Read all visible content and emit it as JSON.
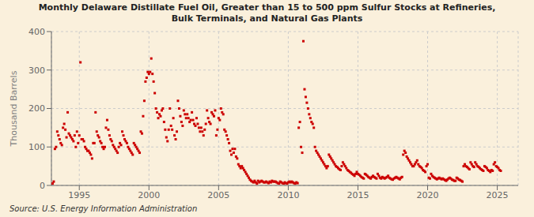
{
  "chart_data": {
    "type": "scatter",
    "title": "Monthly Delaware Distillate Fuel Oil, Greater than 15 to 500 ppm Sulfur Stocks at Refineries,\nBulk Terminals, and Natural Gas Plants",
    "ylabel": "Thousand Barrels",
    "source": "Source: U.S. Energy Information Administration",
    "color": "#CC0000",
    "marker": "s",
    "grid": true,
    "xlim": [
      1993.0,
      2026.5
    ],
    "ylim": [
      0,
      400
    ],
    "xticks": [
      1995,
      2000,
      2005,
      2010,
      2015,
      2020,
      2025
    ],
    "yticks": [
      0,
      100,
      200,
      300,
      400
    ],
    "x": [
      1993.083,
      1993.167,
      1993.25,
      1993.333,
      1993.417,
      1993.5,
      1993.583,
      1993.667,
      1993.75,
      1993.833,
      1993.917,
      1994.0,
      1994.083,
      1994.167,
      1994.25,
      1994.333,
      1994.417,
      1994.5,
      1994.583,
      1994.667,
      1994.75,
      1994.833,
      1994.917,
      1995.0,
      1995.083,
      1995.167,
      1995.25,
      1995.333,
      1995.417,
      1995.5,
      1995.583,
      1995.667,
      1995.75,
      1995.833,
      1995.917,
      1996.0,
      1996.083,
      1996.167,
      1996.25,
      1996.333,
      1996.417,
      1996.5,
      1996.583,
      1996.667,
      1996.75,
      1996.833,
      1996.917,
      1997.0,
      1997.083,
      1997.167,
      1997.25,
      1997.333,
      1997.417,
      1997.5,
      1997.583,
      1997.667,
      1997.75,
      1997.833,
      1997.917,
      1998.0,
      1998.083,
      1998.167,
      1998.25,
      1998.333,
      1998.417,
      1998.5,
      1998.583,
      1998.667,
      1998.75,
      1998.833,
      1998.917,
      1999.0,
      1999.083,
      1999.167,
      1999.25,
      1999.333,
      1999.417,
      1999.5,
      1999.583,
      1999.667,
      1999.75,
      1999.833,
      1999.917,
      2000.0,
      2000.083,
      2000.167,
      2000.25,
      2000.333,
      2000.417,
      2000.5,
      2000.583,
      2000.667,
      2000.75,
      2000.833,
      2000.917,
      2001.0,
      2001.083,
      2001.167,
      2001.25,
      2001.333,
      2001.417,
      2001.5,
      2001.583,
      2001.667,
      2001.75,
      2001.833,
      2001.917,
      2002.0,
      2002.083,
      2002.167,
      2002.25,
      2002.333,
      2002.417,
      2002.5,
      2002.583,
      2002.667,
      2002.75,
      2002.833,
      2002.917,
      2003.0,
      2003.083,
      2003.167,
      2003.25,
      2003.333,
      2003.417,
      2003.5,
      2003.583,
      2003.667,
      2003.75,
      2003.833,
      2003.917,
      2004.0,
      2004.083,
      2004.167,
      2004.25,
      2004.333,
      2004.417,
      2004.5,
      2004.583,
      2004.667,
      2004.75,
      2004.833,
      2004.917,
      2005.0,
      2005.083,
      2005.167,
      2005.25,
      2005.333,
      2005.417,
      2005.5,
      2005.583,
      2005.667,
      2005.75,
      2005.833,
      2005.917,
      2006.0,
      2006.083,
      2006.167,
      2006.25,
      2006.333,
      2006.417,
      2006.5,
      2006.583,
      2006.667,
      2006.75,
      2006.833,
      2006.917,
      2007.0,
      2007.083,
      2007.167,
      2007.25,
      2007.333,
      2007.417,
      2007.5,
      2007.583,
      2007.667,
      2007.75,
      2007.833,
      2007.917,
      2008.0,
      2008.083,
      2008.167,
      2008.25,
      2008.333,
      2008.417,
      2008.5,
      2008.583,
      2008.667,
      2008.75,
      2008.833,
      2008.917,
      2009.0,
      2009.083,
      2009.167,
      2009.25,
      2009.333,
      2009.417,
      2009.5,
      2009.583,
      2009.667,
      2009.75,
      2009.833,
      2009.917,
      2010.0,
      2010.083,
      2010.167,
      2010.25,
      2010.333,
      2010.417,
      2010.5,
      2010.583,
      2010.667,
      2010.75,
      2010.833,
      2010.917,
      2011.0,
      2011.083,
      2011.167,
      2011.25,
      2011.333,
      2011.417,
      2011.5,
      2011.583,
      2011.667,
      2011.75,
      2011.833,
      2011.917,
      2012.0,
      2012.083,
      2012.167,
      2012.25,
      2012.333,
      2012.417,
      2012.5,
      2012.583,
      2012.667,
      2012.75,
      2012.833,
      2012.917,
      2013.0,
      2013.083,
      2013.167,
      2013.25,
      2013.333,
      2013.417,
      2013.5,
      2013.583,
      2013.667,
      2013.75,
      2013.833,
      2013.917,
      2014.0,
      2014.083,
      2014.167,
      2014.25,
      2014.333,
      2014.417,
      2014.5,
      2014.583,
      2014.667,
      2014.75,
      2014.833,
      2014.917,
      2015.0,
      2015.083,
      2015.167,
      2015.25,
      2015.333,
      2015.417,
      2015.5,
      2015.583,
      2015.667,
      2015.75,
      2015.833,
      2015.917,
      2016.0,
      2016.083,
      2016.167,
      2016.25,
      2016.333,
      2016.417,
      2016.5,
      2016.583,
      2016.667,
      2016.75,
      2016.833,
      2016.917,
      2017.0,
      2017.083,
      2017.167,
      2017.25,
      2017.333,
      2017.417,
      2017.5,
      2017.583,
      2017.667,
      2017.75,
      2017.833,
      2017.917,
      2018.0,
      2018.083,
      2018.167,
      2018.25,
      2018.333,
      2018.417,
      2018.5,
      2018.583,
      2018.667,
      2018.75,
      2018.833,
      2018.917,
      2019.0,
      2019.083,
      2019.167,
      2019.25,
      2019.333,
      2019.417,
      2019.5,
      2019.583,
      2019.667,
      2019.75,
      2019.833,
      2019.917,
      2020.0,
      2020.083,
      2020.167,
      2020.25,
      2020.333,
      2020.417,
      2020.5,
      2020.583,
      2020.667,
      2020.75,
      2020.833,
      2020.917,
      2021.0,
      2021.083,
      2021.167,
      2021.25,
      2021.333,
      2021.417,
      2021.5,
      2021.583,
      2021.667,
      2021.75,
      2021.833,
      2021.917,
      2022.0,
      2022.083,
      2022.167,
      2022.25,
      2022.333,
      2022.417,
      2022.5,
      2022.583,
      2022.667,
      2022.75,
      2022.833,
      2022.917,
      2023.0,
      2023.083,
      2023.167,
      2023.25,
      2023.333,
      2023.417,
      2023.5,
      2023.583,
      2023.667,
      2023.75,
      2023.833,
      2023.917,
      2024.0,
      2024.083,
      2024.167,
      2024.25,
      2024.333,
      2024.417,
      2024.5,
      2024.583,
      2024.667,
      2024.75,
      2024.833,
      2024.917,
      2025.0,
      2025.083,
      2025.167,
      2025.25
    ],
    "values": [
      5,
      10,
      95,
      100,
      140,
      130,
      120,
      110,
      105,
      150,
      160,
      145,
      125,
      190,
      135,
      130,
      125,
      120,
      115,
      130,
      100,
      140,
      110,
      130,
      320,
      120,
      120,
      115,
      100,
      95,
      90,
      90,
      85,
      80,
      70,
      110,
      110,
      190,
      140,
      130,
      125,
      115,
      110,
      100,
      95,
      100,
      150,
      170,
      145,
      130,
      120,
      115,
      105,
      100,
      95,
      90,
      85,
      100,
      110,
      105,
      140,
      130,
      120,
      115,
      110,
      100,
      95,
      90,
      85,
      80,
      110,
      105,
      100,
      95,
      90,
      85,
      140,
      135,
      180,
      220,
      270,
      280,
      295,
      290,
      295,
      330,
      290,
      270,
      240,
      200,
      190,
      175,
      185,
      180,
      195,
      200,
      165,
      145,
      125,
      115,
      145,
      200,
      155,
      145,
      175,
      130,
      120,
      140,
      220,
      200,
      180,
      165,
      155,
      195,
      185,
      175,
      185,
      175,
      165,
      170,
      190,
      170,
      160,
      155,
      175,
      160,
      150,
      140,
      150,
      140,
      130,
      145,
      160,
      195,
      175,
      165,
      160,
      190,
      185,
      180,
      195,
      130,
      145,
      175,
      170,
      200,
      190,
      185,
      145,
      140,
      130,
      120,
      110,
      90,
      80,
      95,
      85,
      95,
      75,
      70,
      55,
      50,
      45,
      50,
      45,
      40,
      35,
      30,
      25,
      20,
      15,
      12,
      10,
      8,
      12,
      8,
      5,
      12,
      8,
      10,
      12,
      10,
      8,
      8,
      10,
      8,
      6,
      10,
      8,
      12,
      10,
      10,
      10,
      8,
      6,
      5,
      10,
      8,
      6,
      5,
      8,
      6,
      5,
      8,
      10,
      8,
      10,
      8,
      6,
      5,
      8,
      6,
      150,
      165,
      100,
      85,
      375,
      250,
      230,
      215,
      200,
      185,
      175,
      165,
      160,
      150,
      100,
      90,
      85,
      80,
      75,
      70,
      65,
      60,
      55,
      50,
      45,
      50,
      80,
      75,
      70,
      65,
      60,
      55,
      50,
      48,
      45,
      42,
      40,
      50,
      60,
      55,
      50,
      45,
      40,
      38,
      35,
      33,
      30,
      28,
      25,
      30,
      35,
      30,
      28,
      25,
      22,
      20,
      18,
      30,
      28,
      25,
      22,
      20,
      18,
      22,
      25,
      22,
      20,
      18,
      30,
      25,
      20,
      18,
      22,
      20,
      18,
      20,
      22,
      25,
      20,
      18,
      16,
      15,
      18,
      20,
      22,
      20,
      18,
      16,
      20,
      22,
      80,
      90,
      85,
      75,
      70,
      65,
      60,
      55,
      50,
      50,
      55,
      60,
      65,
      55,
      50,
      48,
      45,
      40,
      38,
      35,
      50,
      55,
      20,
      18,
      30,
      25,
      22,
      20,
      18,
      16,
      18,
      20,
      18,
      16,
      18,
      16,
      14,
      12,
      15,
      18,
      20,
      18,
      15,
      14,
      12,
      12,
      20,
      18,
      15,
      14,
      12,
      10,
      50,
      55,
      50,
      48,
      45,
      42,
      60,
      55,
      50,
      48,
      60,
      55,
      50,
      48,
      45,
      42,
      40,
      38,
      50,
      48,
      45,
      40,
      38,
      35,
      40,
      38,
      55,
      60,
      50,
      48,
      45,
      40,
      38
    ]
  }
}
